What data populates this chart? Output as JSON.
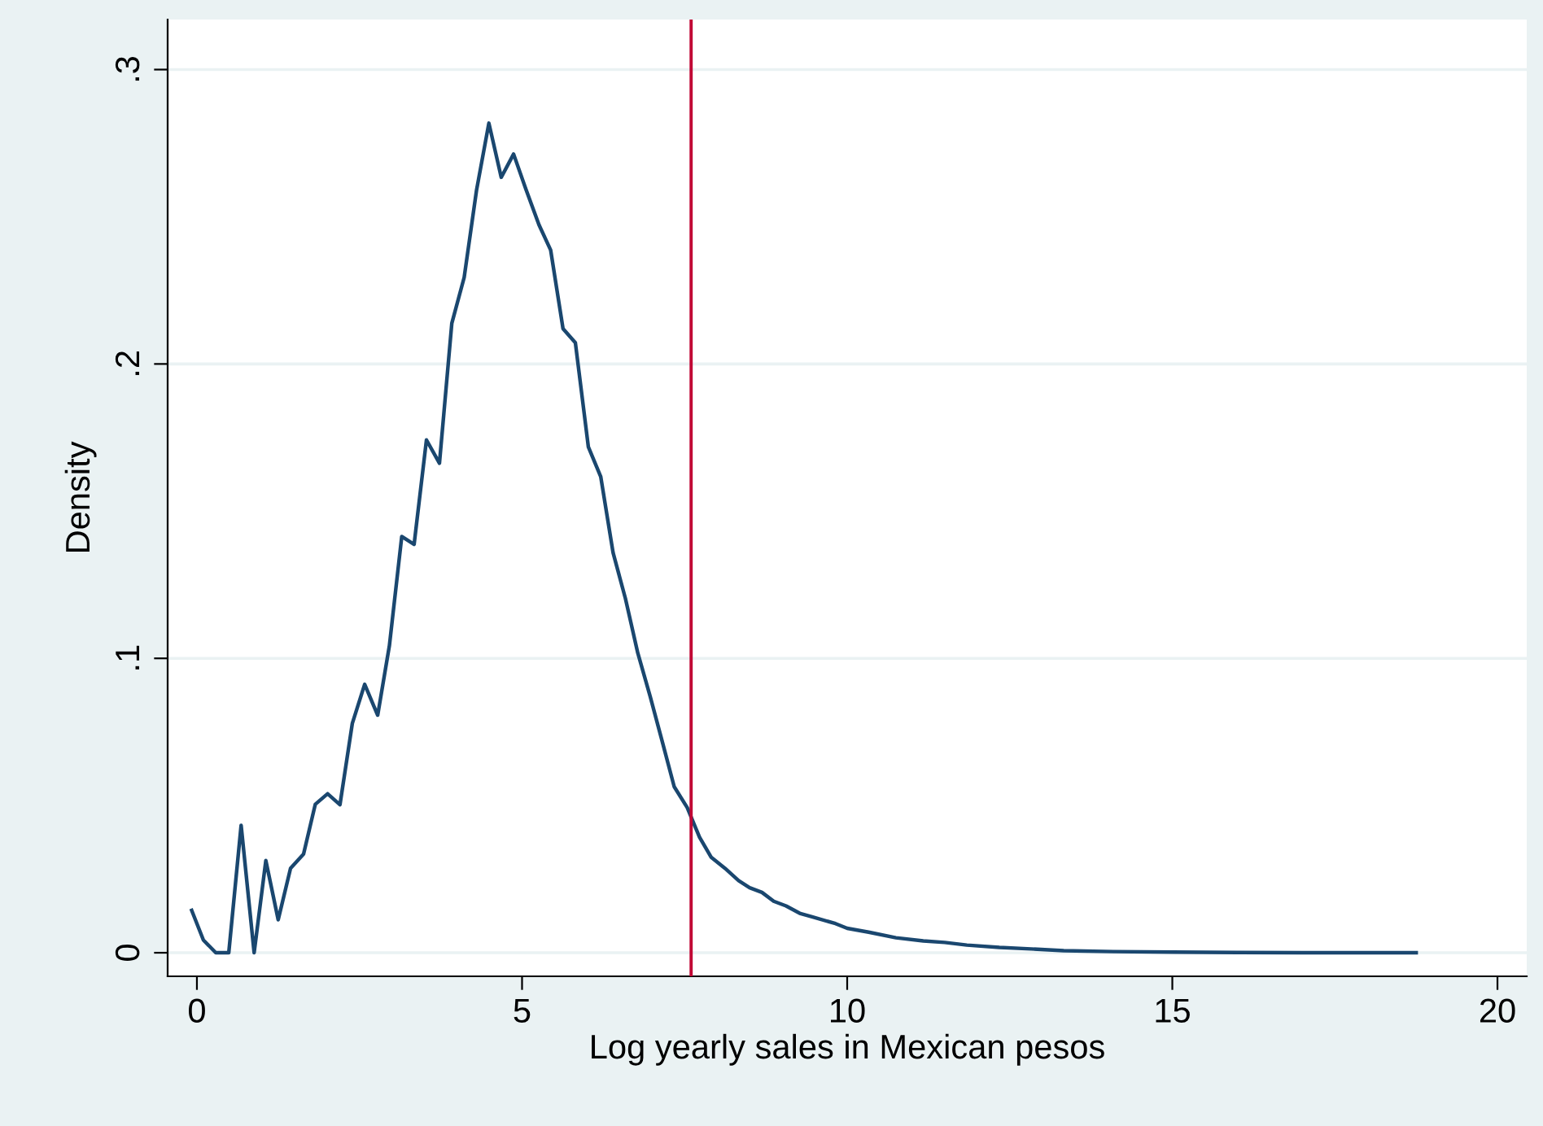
{
  "chart_data": {
    "type": "line",
    "xlabel": "Log yearly sales in Mexican pesos",
    "ylabel": "Density",
    "x": [
      -0.08,
      0.1,
      0.29,
      0.49,
      0.68,
      0.88,
      1.06,
      1.25,
      1.44,
      1.64,
      1.82,
      2.01,
      2.2,
      2.39,
      2.58,
      2.78,
      2.96,
      3.15,
      3.34,
      3.53,
      3.73,
      3.92,
      4.11,
      4.3,
      4.49,
      4.68,
      4.87,
      5.06,
      5.26,
      5.44,
      5.63,
      5.82,
      6.02,
      6.21,
      6.4,
      6.59,
      6.78,
      6.97,
      7.16,
      7.34,
      7.54,
      7.73,
      7.91,
      8.12,
      8.33,
      8.5,
      8.69,
      8.87,
      9.06,
      9.27,
      9.46,
      9.82,
      10.0,
      10.33,
      10.75,
      11.17,
      11.5,
      11.84,
      12.34,
      12.83,
      13.33,
      14.09,
      15.0,
      16.0,
      17.0,
      18.75
    ],
    "series": [
      {
        "color": "#1a476f",
        "values": [
          0.0144,
          0.0043,
          0,
          0,
          0.0433,
          0,
          0.0313,
          0.0112,
          0.0287,
          0.0335,
          0.0504,
          0.054,
          0.0503,
          0.0779,
          0.0912,
          0.0807,
          0.1043,
          0.1414,
          0.1387,
          0.1742,
          0.1663,
          0.2138,
          0.2294,
          0.259,
          0.2818,
          0.2634,
          0.2713,
          0.2593,
          0.2473,
          0.2387,
          0.212,
          0.2072,
          0.1718,
          0.1617,
          0.1359,
          0.1203,
          0.1018,
          0.0871,
          0.0714,
          0.0564,
          0.0493,
          0.0392,
          0.0324,
          0.0287,
          0.0245,
          0.0221,
          0.0205,
          0.0175,
          0.0159,
          0.0134,
          0.0122,
          0.0099,
          0.0083,
          0.007,
          0.0051,
          0.004,
          0.0035,
          0.0026,
          0.0018,
          0.0013,
          0.0007,
          0.0004,
          0.0002,
          0.0001,
          0,
          0
        ]
      }
    ],
    "ref_lines": [
      {
        "axis": "x",
        "value": 7.6,
        "color": "#c10534"
      }
    ],
    "xlim": [
      -0.45,
      20.45
    ],
    "ylim": [
      -0.008,
      0.317
    ],
    "xticks": [
      0,
      5,
      10,
      15,
      20
    ],
    "yticks": [
      0,
      {
        "value": 0.1,
        "label": ".1"
      },
      {
        "value": 0.2,
        "label": ".2"
      },
      {
        "value": 0.3,
        "label": ".3"
      }
    ],
    "grid": "y",
    "marker": "none",
    "line_style": "solid",
    "legend": false
  }
}
